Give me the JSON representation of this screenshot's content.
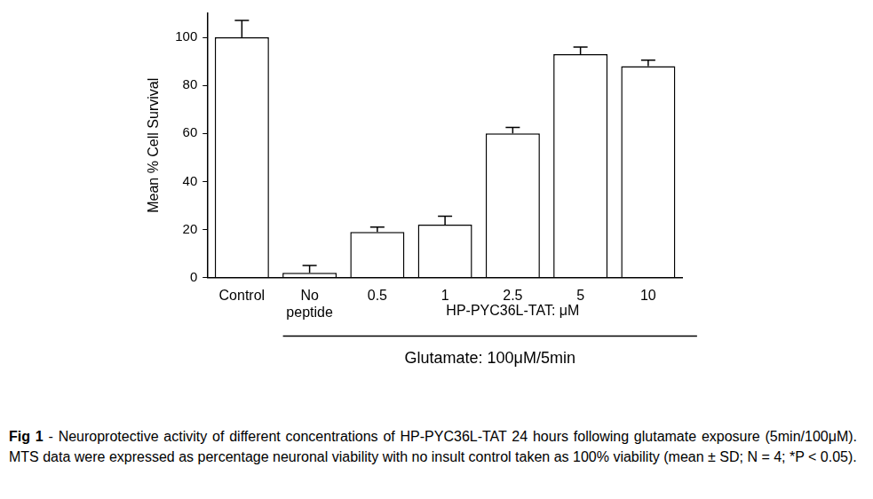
{
  "chart_data": {
    "type": "bar",
    "categories": [
      "Control",
      "No peptide",
      "0.5",
      "1",
      "2.5",
      "5",
      "10"
    ],
    "values": [
      100,
      2,
      19,
      22,
      60,
      93,
      88
    ],
    "errors": [
      7,
      3,
      2,
      3.5,
      2.5,
      3,
      2.5
    ],
    "color": "#ffffff",
    "y_label": "Mean % Cell Survival",
    "ylim": [
      0,
      110
    ],
    "yticks": [
      0,
      20,
      40,
      60,
      80,
      100
    ],
    "grid": false,
    "annotations": {
      "group_label": "HP-PYC36L-TAT: μM",
      "treatment_label": "Glutamate: 100μM/5min"
    },
    "caption": {
      "label": "Fig 1",
      "text": " - Neuroprotective activity of different concentrations of HP-PYC36L-TAT 24 hours following glutamate exposure (5min/100μM).  MTS data were expressed as percentage neuronal viability with no insult control taken as 100% viability (mean ± SD; N = 4; *P < 0.05)."
    }
  }
}
